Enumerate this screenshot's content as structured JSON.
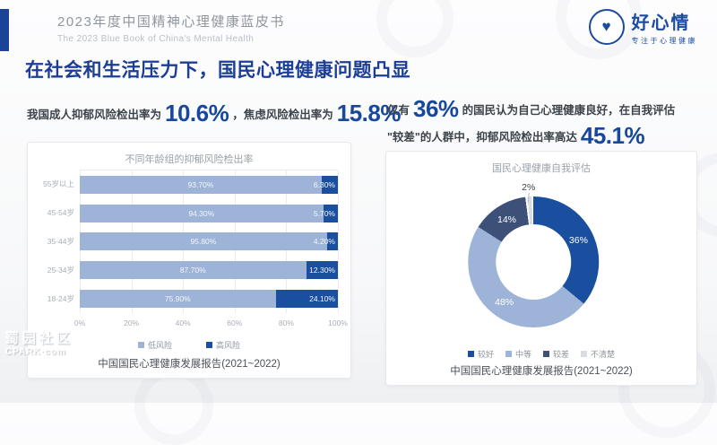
{
  "header": {
    "title": "2023年度中国精神心理健康蓝皮书",
    "subtitle": "The 2023 Blue Book of China's Mental Health",
    "logo": {
      "name": "好心情",
      "tagline": "专注于心理健康",
      "heart_icon": "heart-in-circle"
    }
  },
  "page_title": "在社会和生活压力下，国民心理健康问题凸显",
  "colors": {
    "accent_blue": "#1b4498",
    "heading_blue": "#1c3e94",
    "number_blue": "#17489c",
    "bar_low": "#9db4d8",
    "bar_high": "#1a4fa0",
    "pie_good": "#1a4fa0",
    "pie_medium": "#9db4d8",
    "pie_poor": "#3d5178",
    "pie_unclear": "#d9dde3"
  },
  "left_stats": {
    "prefix": "我国成人抑郁风险检出率为",
    "value1": "10.6%",
    "middle": "，焦虑风险检出率为",
    "value2": "15.8%"
  },
  "right_stats": {
    "line1_prefix": "仅有",
    "line1_value": "36%",
    "line1_suffix": "的国民认为自己心理健康良好，在自我评估",
    "line2_prefix": "\"较差\"的人群中，抑郁风险检出率高达",
    "line2_value": "45.1%"
  },
  "chart_data": [
    {
      "type": "bar",
      "orientation": "horizontal-stacked",
      "title": "不同年龄组的抑郁风险检出率",
      "categories": [
        "55岁以上",
        "45-54岁",
        "35-44岁",
        "25-34岁",
        "18-24岁"
      ],
      "series": [
        {
          "name": "低风险",
          "color": "#9db4d8",
          "values": [
            93.7,
            94.3,
            95.8,
            87.7,
            75.9
          ],
          "labels": [
            "93.70%",
            "94.30%",
            "95.80%",
            "87.70%",
            "75.90%"
          ]
        },
        {
          "name": "高风险",
          "color": "#1a4fa0",
          "values": [
            6.3,
            5.7,
            4.2,
            12.3,
            24.1
          ],
          "labels": [
            "6.30%",
            "5.70%",
            "4.20%",
            "12.30%",
            "24.10%"
          ]
        }
      ],
      "x_ticks": [
        "0%",
        "20%",
        "40%",
        "60%",
        "80%",
        "100%"
      ],
      "xlim": [
        0,
        100
      ],
      "grid": true,
      "legend_position": "bottom",
      "caption": "中国国民心理健康发展报告(2021~2022)"
    },
    {
      "type": "pie",
      "donut": true,
      "title": "国民心理健康自我评估",
      "slices": [
        {
          "label": "较好",
          "value": 36,
          "display": "36%",
          "color": "#1a4fa0"
        },
        {
          "label": "中等",
          "value": 48,
          "display": "48%",
          "color": "#9db4d8"
        },
        {
          "label": "较差",
          "value": 14,
          "display": "14%",
          "color": "#3d5178"
        },
        {
          "label": "不清楚",
          "value": 2,
          "display": "2%",
          "color": "#d9dde3"
        }
      ],
      "legend_position": "bottom",
      "caption": "中国国民心理健康发展报告(2021~2022)"
    }
  ],
  "watermark": {
    "line1": "蜀园社区",
    "line2": "CPARK·com"
  }
}
